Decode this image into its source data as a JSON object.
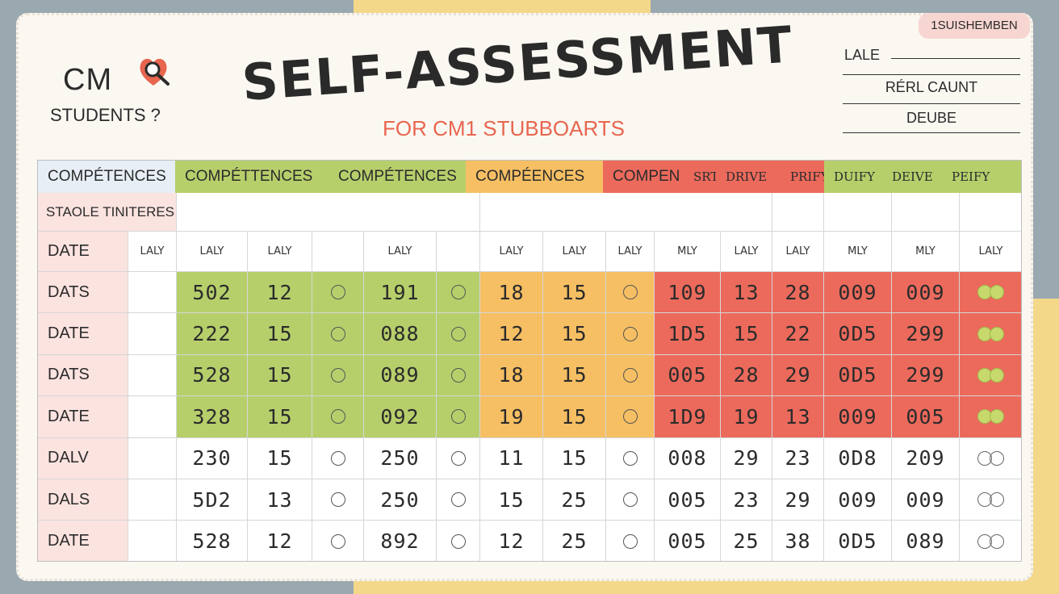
{
  "header": {
    "logo_text": "CM",
    "logo_sub": "STUDENTS ?",
    "title": "SELF-ASSESSMENT",
    "subtitle": "FOR CM1 STUBBOARTS",
    "badge": "1SUISHEMBEN",
    "meta": [
      "LALE",
      "RÉRL CAUNT",
      "DEUBE"
    ]
  },
  "colors": {
    "green": "#b7cf6b",
    "orange": "#f6bf63",
    "red": "#ec6a5c",
    "pink": "#fbe3e0",
    "blue": "#e7eef5",
    "accent": "#e8664f"
  },
  "table": {
    "bands": [
      "COMPÉTENCES",
      "COMPÉTTENCES",
      "COMPÉTENCES",
      "COMPÉENCES",
      "COMPEN",
      "SRT",
      "DRIVE",
      "PRIFY",
      "DUIFY",
      "DEIVE",
      "PEIFY"
    ],
    "criteria_label": "STAOLE TINITERES",
    "date_header": "DATE",
    "col_headers": [
      "LALY",
      "LALY",
      "LALY",
      "",
      "LALY",
      "",
      "LALY",
      "LALY",
      "LALY",
      "MLY",
      "LALY",
      "LALY",
      "MLY",
      "MLY",
      "LALY"
    ],
    "rows": [
      {
        "label": "DATS",
        "values": [
          "502",
          "12",
          "191",
          "18",
          "15",
          "109",
          "13",
          "28",
          "009",
          "009"
        ]
      },
      {
        "label": "DATE",
        "values": [
          "222",
          "15",
          "088",
          "12",
          "15",
          "1D5",
          "15",
          "22",
          "0D5",
          "299"
        ]
      },
      {
        "label": "DATS",
        "values": [
          "528",
          "15",
          "089",
          "18",
          "15",
          "005",
          "28",
          "29",
          "0D5",
          "299"
        ]
      },
      {
        "label": "DATE",
        "values": [
          "328",
          "15",
          "092",
          "19",
          "15",
          "1D9",
          "19",
          "13",
          "009",
          "005"
        ]
      },
      {
        "label": "DALV",
        "values": [
          "230",
          "15",
          "250",
          "11",
          "15",
          "008",
          "29",
          "23",
          "0D8",
          "209"
        ]
      },
      {
        "label": "DALS",
        "values": [
          "5D2",
          "13",
          "250",
          "15",
          "25",
          "005",
          "23",
          "29",
          "009",
          "009"
        ]
      },
      {
        "label": "DATE",
        "values": [
          "528",
          "12",
          "892",
          "12",
          "25",
          "005",
          "25",
          "38",
          "0D5",
          "089"
        ]
      }
    ]
  }
}
